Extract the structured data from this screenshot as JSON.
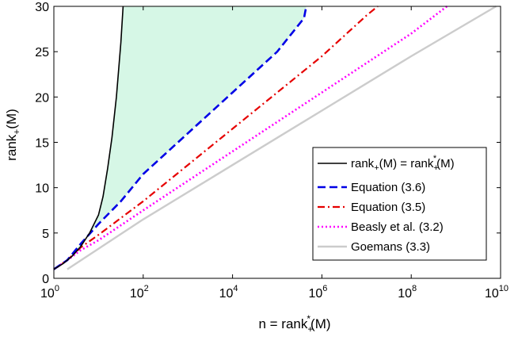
{
  "chart_data": {
    "type": "line",
    "x_scale": "log10",
    "xlim_exponent": [
      0,
      10
    ],
    "ylim": [
      0,
      30
    ],
    "x_ticks": [
      {
        "base": "10",
        "exp": "0"
      },
      {
        "base": "10",
        "exp": "2"
      },
      {
        "base": "10",
        "exp": "4"
      },
      {
        "base": "10",
        "exp": "6"
      },
      {
        "base": "10",
        "exp": "8"
      },
      {
        "base": "10",
        "exp": "10"
      }
    ],
    "y_ticks": [
      "0",
      "5",
      "10",
      "15",
      "20",
      "25",
      "30"
    ],
    "xlabel": {
      "main": "n = rank",
      "sub": "+",
      "sup": "*",
      "tail": "(M)"
    },
    "ylabel": {
      "main": "rank",
      "sub": "+",
      "tail": "(M)"
    },
    "shaded_region": {
      "between": [
        "exact",
        "eq36"
      ],
      "color": "#d6f7e6"
    },
    "series": [
      {
        "id": "exact",
        "name": {
          "main": "rank",
          "sub": "+",
          "mid": "(M) = rank",
          "sub2": "+",
          "sup2": "*",
          "tail": "(M)"
        },
        "color": "#000000",
        "style": "solid",
        "width": 1.6,
        "points": [
          [
            0,
            1
          ],
          [
            0.2,
            1.6
          ],
          [
            0.4,
            2.4
          ],
          [
            0.6,
            3.5
          ],
          [
            0.8,
            5
          ],
          [
            1.0,
            7
          ],
          [
            1.1,
            9
          ],
          [
            1.2,
            12
          ],
          [
            1.3,
            15.5
          ],
          [
            1.4,
            20
          ],
          [
            1.5,
            26
          ],
          [
            1.55,
            30
          ]
        ]
      },
      {
        "id": "eq36",
        "name": {
          "main": "Equation (3.6)"
        },
        "color": "#0000e6",
        "style": "dashed",
        "width": 2.6,
        "points": [
          [
            0,
            1
          ],
          [
            0.3,
            2
          ],
          [
            0.6,
            3.8
          ],
          [
            1,
            6
          ],
          [
            1.5,
            8.5
          ],
          [
            2,
            11.5
          ],
          [
            3,
            16
          ],
          [
            4,
            20.5
          ],
          [
            5,
            25
          ],
          [
            5.6,
            28.7
          ],
          [
            5.65,
            30
          ]
        ]
      },
      {
        "id": "eq35",
        "name": {
          "main": "Equation (3.5)"
        },
        "color": "#e60000",
        "style": "dashdot",
        "width": 2.2,
        "points": [
          [
            0,
            1
          ],
          [
            0.3,
            2
          ],
          [
            0.6,
            3.4
          ],
          [
            1,
            4.8
          ],
          [
            2,
            8.5
          ],
          [
            3,
            12.5
          ],
          [
            4,
            16.5
          ],
          [
            5,
            20.5
          ],
          [
            6,
            24.5
          ],
          [
            7,
            29
          ],
          [
            7.25,
            30
          ]
        ]
      },
      {
        "id": "beasly",
        "name": {
          "main": "Beasly et al. (3.2)"
        },
        "color": "#ff00ff",
        "style": "dotted",
        "width": 2.6,
        "points": [
          [
            0,
            1
          ],
          [
            0.3,
            2
          ],
          [
            0.6,
            3.1
          ],
          [
            1,
            4.2
          ],
          [
            2,
            7.5
          ],
          [
            4,
            14
          ],
          [
            6,
            20.5
          ],
          [
            8,
            27
          ],
          [
            8.8,
            30
          ]
        ]
      },
      {
        "id": "goemans",
        "name": {
          "main": "Goemans (3.3)"
        },
        "color": "#cccccc",
        "style": "solid",
        "width": 2.4,
        "points": [
          [
            0.3,
            1
          ],
          [
            2,
            6.5
          ],
          [
            4,
            12.5
          ],
          [
            6,
            18.5
          ],
          [
            8,
            24.5
          ],
          [
            9.9,
            30
          ]
        ]
      }
    ]
  }
}
